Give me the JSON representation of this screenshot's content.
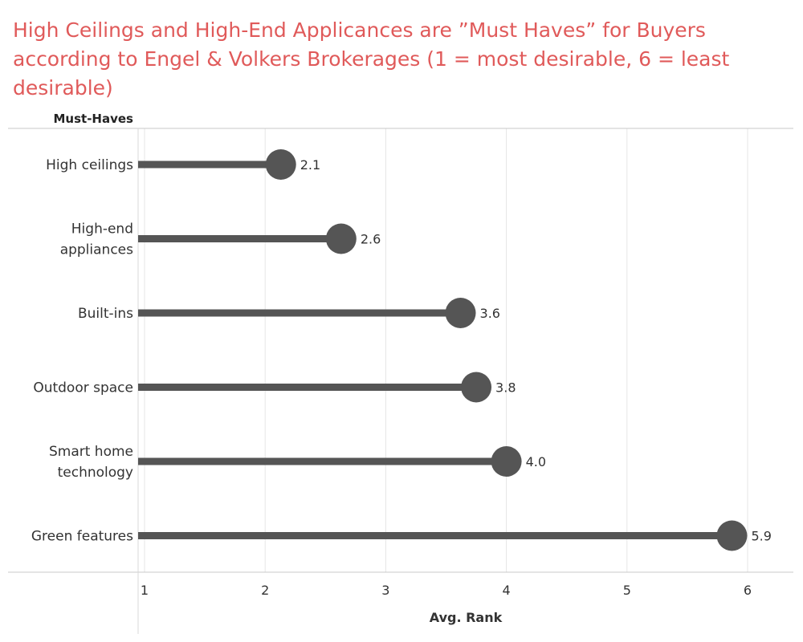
{
  "chart_data": {
    "type": "lollipop",
    "title": "High Ceilings and High-End Applicances are ”Must Haves” for Buyers according to Engel & Volkers Brokerages (1 = most desirable, 6 = least desirable)",
    "row_header": "Must-Haves",
    "xlabel": "Avg. Rank",
    "xlim": [
      1,
      6.4
    ],
    "xticks": [
      1,
      2,
      3,
      4,
      5,
      6
    ],
    "categories": [
      [
        "High ceilings"
      ],
      [
        "High-end",
        "appliances"
      ],
      [
        "Built-ins"
      ],
      [
        "Outdoor space"
      ],
      [
        "Smart home",
        "technology"
      ],
      [
        "Green features"
      ]
    ],
    "values": [
      2.13,
      2.63,
      3.62,
      3.75,
      4.0,
      5.87
    ],
    "value_labels": [
      "2.1",
      "2.6",
      "3.6",
      "3.8",
      "4.0",
      "5.9"
    ],
    "grid": true,
    "colors": {
      "title": "#e05a5a",
      "mark": "#555555",
      "grid": "#e6e6e6"
    }
  }
}
